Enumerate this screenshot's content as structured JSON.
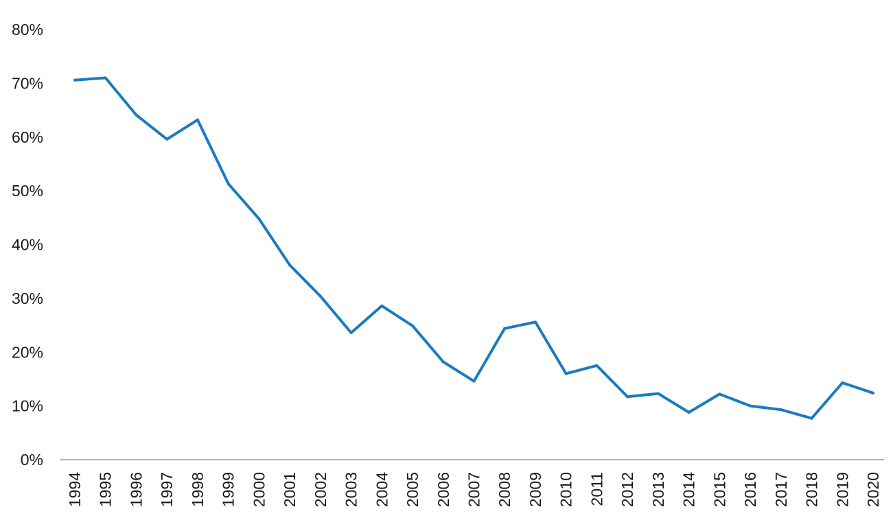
{
  "chart_data": {
    "type": "line",
    "title": "",
    "xlabel": "",
    "ylabel": "",
    "x": [
      "1994",
      "1995",
      "1996",
      "1997",
      "1998",
      "1999",
      "2000",
      "2001",
      "2002",
      "2003",
      "2004",
      "2005",
      "2006",
      "2007",
      "2008",
      "2009",
      "2010",
      "2011",
      "2012",
      "2013",
      "2014",
      "2015",
      "2016",
      "2017",
      "2018",
      "2019",
      "2020"
    ],
    "y_ticks": [
      "0%",
      "10%",
      "20%",
      "30%",
      "40%",
      "50%",
      "60%",
      "70%",
      "80%"
    ],
    "ylim": [
      0,
      80
    ],
    "grid": false,
    "legend": "none",
    "series": [
      {
        "color": "#1b7bbf",
        "values": [
          70.6,
          71.0,
          64.1,
          59.6,
          63.2,
          51.3,
          44.8,
          36.2,
          30.4,
          23.6,
          28.6,
          24.9,
          18.2,
          14.6,
          24.4,
          25.6,
          16.0,
          17.5,
          11.7,
          12.3,
          8.8,
          12.2,
          10.0,
          9.3,
          7.7,
          14.3,
          12.4
        ]
      }
    ]
  }
}
